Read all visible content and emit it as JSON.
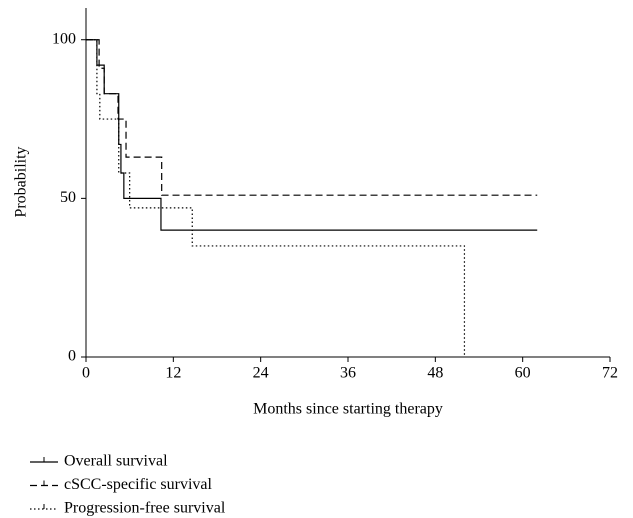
{
  "chart_data": {
    "type": "step",
    "x_label": "Months since starting therapy",
    "y_label": "Probability",
    "xlim": [
      0,
      72
    ],
    "xticks": [
      0,
      12,
      24,
      36,
      48,
      60,
      72
    ],
    "ylim": [
      0,
      110
    ],
    "yticks": [
      0,
      50,
      100
    ],
    "series": [
      {
        "name": "Overall survival",
        "color": "#000000",
        "dash": "solid",
        "x": [
          0,
          1.5,
          2.5,
          4.5,
          4.8,
          5.2,
          10.3,
          62
        ],
        "values": [
          100,
          92,
          83,
          67,
          58,
          50,
          40,
          40
        ]
      },
      {
        "name": "cSCC-specific survival",
        "color": "#000000",
        "dash": "dashed",
        "x": [
          0,
          1.8,
          2.5,
          4.4,
          5.5,
          10.4,
          62
        ],
        "values": [
          100,
          91,
          83,
          75,
          63,
          51,
          51
        ]
      },
      {
        "name": "Progression-free survival",
        "color": "#000000",
        "dash": "dotted",
        "x": [
          0,
          1.5,
          1.9,
          4.5,
          6,
          14.6,
          52
        ],
        "values": [
          100,
          83,
          75,
          58,
          47,
          35,
          0
        ]
      }
    ]
  }
}
